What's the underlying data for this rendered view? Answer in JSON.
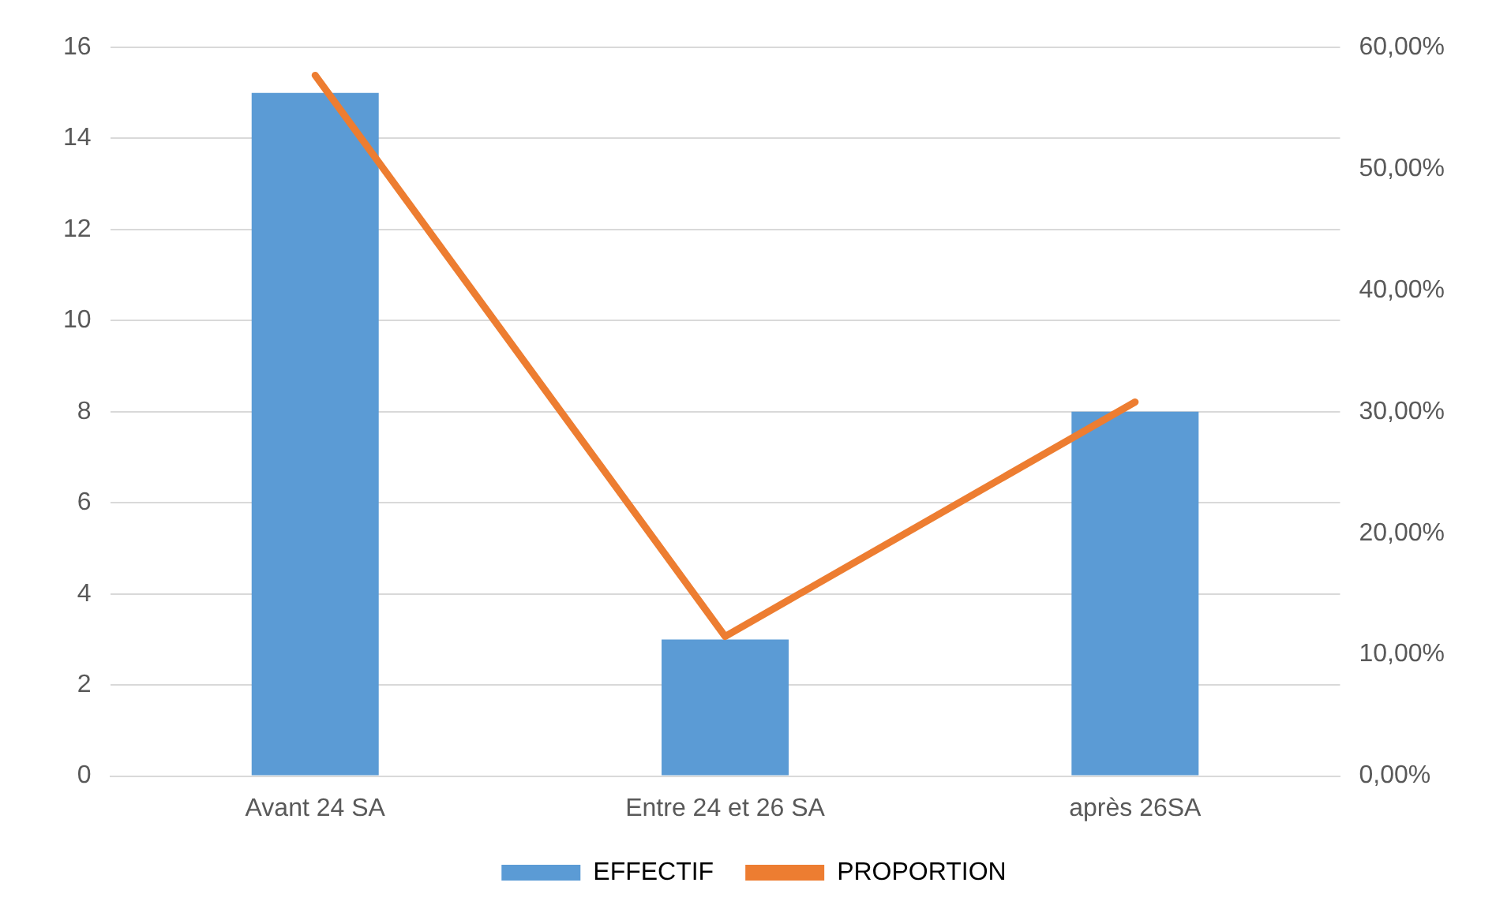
{
  "chart_data": {
    "type": "bar",
    "categories": [
      "Avant 24 SA",
      "Entre 24 et 26 SA",
      "après 26SA"
    ],
    "series": [
      {
        "name": "EFFECTIF",
        "color": "#5b9bd5",
        "values": [
          15,
          3,
          8
        ]
      },
      {
        "name": "PROPORTION",
        "type": "line",
        "axis": "y2",
        "color": "#ed7d31",
        "values": [
          57.7,
          11.5,
          30.8
        ]
      }
    ],
    "ylim": [
      0,
      16
    ],
    "yticks": [
      0,
      2,
      4,
      6,
      8,
      10,
      12,
      14,
      16
    ],
    "y2lim": [
      0,
      60
    ],
    "y2ticks": [
      {
        "value": 0,
        "label": "0,00%"
      },
      {
        "value": 10,
        "label": "10,00%"
      },
      {
        "value": 20,
        "label": "20,00%"
      },
      {
        "value": 30,
        "label": "30,00%"
      },
      {
        "value": 40,
        "label": "40,00%"
      },
      {
        "value": 50,
        "label": "50,00%"
      },
      {
        "value": 60,
        "label": "60,00%"
      }
    ],
    "grid": "y",
    "legend": "bottom",
    "marker": "none"
  }
}
